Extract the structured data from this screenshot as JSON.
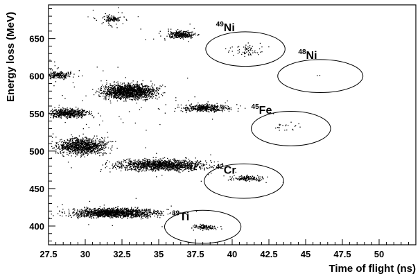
{
  "chart_data": {
    "type": "scatter",
    "title": "",
    "xlabel": "Time of flight (ns)",
    "ylabel": "Energy loss (MeV)",
    "xlim": [
      27.5,
      52.5
    ],
    "ylim": [
      375,
      695
    ],
    "x_ticks": [
      "27.5",
      "30",
      "32.5",
      "35",
      "37.5",
      "40",
      "42.5",
      "45",
      "47.5",
      "50"
    ],
    "x_tick_values": [
      27.5,
      30,
      32.5,
      35,
      37.5,
      40,
      42.5,
      45,
      47.5,
      50
    ],
    "y_ticks": [
      "400",
      "450",
      "500",
      "550",
      "600",
      "650"
    ],
    "y_tick_values": [
      400,
      450,
      500,
      550,
      600,
      650
    ],
    "grid": false,
    "clusters": [
      {
        "cx": 32.0,
        "cy": 418,
        "sx": 2.6,
        "sy": 5,
        "n": 1400
      },
      {
        "cx": 35.2,
        "cy": 482,
        "sx": 2.6,
        "sy": 6,
        "n": 1300
      },
      {
        "cx": 29.8,
        "cy": 507,
        "sx": 1.5,
        "sy": 9,
        "n": 1000
      },
      {
        "cx": 28.9,
        "cy": 551,
        "sx": 1.2,
        "sy": 5,
        "n": 500
      },
      {
        "cx": 33.0,
        "cy": 580,
        "sx": 1.6,
        "sy": 8,
        "n": 1500
      },
      {
        "cx": 28.1,
        "cy": 602,
        "sx": 0.8,
        "sy": 4,
        "n": 200
      },
      {
        "cx": 38.2,
        "cy": 558,
        "sx": 1.4,
        "sy": 4,
        "n": 400
      },
      {
        "cx": 36.5,
        "cy": 656,
        "sx": 0.8,
        "sy": 4,
        "n": 300
      },
      {
        "cx": 31.8,
        "cy": 677,
        "sx": 0.5,
        "sy": 3,
        "n": 90
      },
      {
        "cx": 41.0,
        "cy": 464,
        "sx": 1.0,
        "sy": 3,
        "n": 140
      },
      {
        "cx": 38.1,
        "cy": 399,
        "sx": 0.7,
        "sy": 3,
        "n": 110
      },
      {
        "cx": 41.0,
        "cy": 635,
        "sx": 1.0,
        "sy": 6,
        "n": 65
      },
      {
        "cx": 43.8,
        "cy": 534,
        "sx": 0.9,
        "sy": 5,
        "n": 22
      },
      {
        "cx": 45.8,
        "cy": 602,
        "sx": 0.3,
        "sy": 2,
        "n": 2
      }
    ],
    "scatter_noise_points": 260,
    "gates": [
      {
        "num": "49",
        "sym": "Ni",
        "cx": 40.9,
        "cy": 636,
        "rx": 2.7,
        "ry": 23,
        "lx": 38.9,
        "ly": 660
      },
      {
        "num": "48",
        "sym": "Ni",
        "cx": 46.0,
        "cy": 600,
        "rx": 2.9,
        "ry": 22,
        "lx": 44.5,
        "ly": 623
      },
      {
        "num": "45",
        "sym": "Fe",
        "cx": 44.0,
        "cy": 530,
        "rx": 2.7,
        "ry": 23,
        "lx": 41.3,
        "ly": 550
      },
      {
        "num": "42",
        "sym": "Cr",
        "cx": 40.8,
        "cy": 460,
        "rx": 2.7,
        "ry": 23,
        "lx": 38.9,
        "ly": 470
      },
      {
        "num": "39",
        "sym": "Ti",
        "cx": 38.0,
        "cy": 399,
        "rx": 2.6,
        "ry": 22,
        "lx": 35.9,
        "ly": 408
      }
    ]
  }
}
